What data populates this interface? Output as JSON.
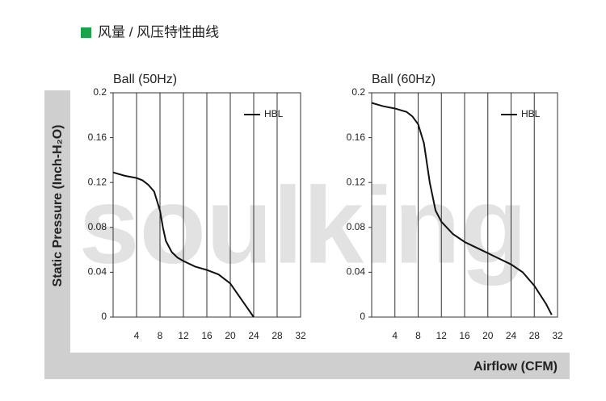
{
  "title": "风量 / 风压特性曲线",
  "ylabel": "Static Pressure (Inch-H₂O)",
  "xlabel": "Airflow (CFM)",
  "watermark": "soulking",
  "chart_data": [
    {
      "type": "line",
      "title": "Ball (50Hz)",
      "x": [
        0,
        2,
        4,
        5,
        6,
        7,
        8,
        8.5,
        9,
        10,
        11,
        12,
        14,
        16,
        18,
        20,
        22,
        24
      ],
      "series": [
        {
          "name": "HBL",
          "color": "#111111",
          "values": [
            0.129,
            0.126,
            0.124,
            0.122,
            0.118,
            0.112,
            0.095,
            0.08,
            0.068,
            0.058,
            0.053,
            0.05,
            0.045,
            0.042,
            0.038,
            0.03,
            0.015,
            0
          ]
        }
      ],
      "xlim": [
        0,
        32
      ],
      "xticks": [
        4,
        8,
        12,
        16,
        20,
        24,
        28,
        32
      ],
      "ylim": [
        0,
        0.2
      ],
      "yticks": [
        0,
        0.04,
        0.08,
        0.12,
        0.16,
        0.2
      ],
      "grid": "x",
      "legend": "upper right"
    },
    {
      "type": "line",
      "title": "Ball (60Hz)",
      "x": [
        0,
        2,
        4,
        6,
        7,
        8,
        9,
        10,
        11,
        12,
        14,
        16,
        18,
        20,
        22,
        24,
        26,
        28,
        30,
        31
      ],
      "series": [
        {
          "name": "HBL",
          "color": "#111111",
          "values": [
            0.191,
            0.188,
            0.186,
            0.183,
            0.179,
            0.172,
            0.155,
            0.12,
            0.095,
            0.085,
            0.074,
            0.067,
            0.062,
            0.057,
            0.052,
            0.047,
            0.04,
            0.028,
            0.012,
            0.002
          ]
        }
      ],
      "xlim": [
        0,
        32
      ],
      "xticks": [
        4,
        8,
        12,
        16,
        20,
        24,
        28,
        32
      ],
      "ylim": [
        0,
        0.2
      ],
      "yticks": [
        0,
        0.04,
        0.08,
        0.12,
        0.16,
        0.2
      ],
      "grid": "x",
      "legend": "upper right"
    }
  ]
}
